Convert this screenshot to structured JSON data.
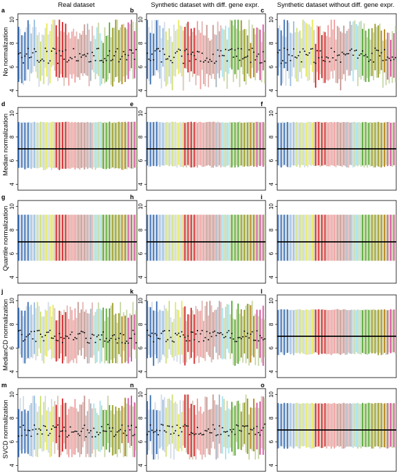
{
  "column_titles": [
    "Real dataset",
    "Synthetic dataset with diff. gene expr.",
    "Synthetic dataset without diff. gene expr."
  ],
  "row_labels": [
    "No normalization",
    "Median normalization",
    "Quantile normalization",
    "MedianCD normalization",
    "SVCD normalization"
  ],
  "palette": [
    "#3a6fb5",
    "#9bbfe0",
    "#cfe07a",
    "#e8ea5a",
    "#d7262a",
    "#f2a0a0",
    "#c49a94",
    "#a9b4c0",
    "#a9e4ee",
    "#5aaa3a",
    "#9a9a25",
    "#b5861f",
    "#d4569f"
  ],
  "chart_data": [
    {
      "panel": "a",
      "type": "box",
      "column": "Real dataset",
      "row": "No normalization",
      "ytick_labels": [
        "4",
        "6",
        "8",
        "10"
      ],
      "ylim": [
        3.5,
        10.5
      ],
      "median_range": [
        6.3,
        7.6
      ],
      "whisker_range": [
        4.0,
        10.0
      ],
      "pattern": "varied"
    },
    {
      "panel": "b",
      "type": "box",
      "column": "Synthetic dataset with diff. gene expr.",
      "row": "No normalization",
      "ytick_labels": [
        "4",
        "6",
        "8",
        "10"
      ],
      "ylim": [
        3.5,
        10.5
      ],
      "median_range": [
        6.3,
        7.6
      ],
      "whisker_range": [
        4.0,
        10.0
      ],
      "pattern": "varied"
    },
    {
      "panel": "c",
      "type": "box",
      "column": "Synthetic dataset without diff. gene expr.",
      "row": "No normalization",
      "ytick_labels": [
        "4",
        "6",
        "8",
        "10"
      ],
      "ylim": [
        3.5,
        10.5
      ],
      "median_range": [
        6.3,
        7.6
      ],
      "whisker_range": [
        4.0,
        10.0
      ],
      "pattern": "varied"
    },
    {
      "panel": "d",
      "type": "box",
      "column": "Real dataset",
      "row": "Median normalization",
      "ytick_labels": [
        "4",
        "6",
        "8",
        "10"
      ],
      "ylim": [
        3.5,
        10.5
      ],
      "median": 7.0,
      "whisker_range": [
        5.2,
        9.3
      ],
      "pattern": "aligned"
    },
    {
      "panel": "e",
      "type": "box",
      "column": "Synthetic dataset with diff. gene expr.",
      "row": "Median normalization",
      "ytick_labels": [
        "4",
        "6",
        "8",
        "10"
      ],
      "ylim": [
        3.5,
        10.5
      ],
      "median": 7.0,
      "whisker_range": [
        5.4,
        9.3
      ],
      "pattern": "aligned"
    },
    {
      "panel": "f",
      "type": "box",
      "column": "Synthetic dataset without diff. gene expr.",
      "row": "Median normalization",
      "ytick_labels": [
        "4",
        "6",
        "8",
        "10"
      ],
      "ylim": [
        3.5,
        10.5
      ],
      "median": 7.0,
      "whisker_range": [
        5.4,
        9.3
      ],
      "pattern": "aligned"
    },
    {
      "panel": "g",
      "type": "box",
      "column": "Real dataset",
      "row": "Quantile normalization",
      "ytick_labels": [
        "4",
        "6",
        "8",
        "10"
      ],
      "ylim": [
        3.5,
        10.5
      ],
      "median": 7.0,
      "whisker_range": [
        5.4,
        9.3
      ],
      "pattern": "identical"
    },
    {
      "panel": "h",
      "type": "box",
      "column": "Synthetic dataset with diff. gene expr.",
      "row": "Quantile normalization",
      "ytick_labels": [
        "4",
        "6",
        "8",
        "10"
      ],
      "ylim": [
        3.5,
        10.5
      ],
      "median": 7.0,
      "whisker_range": [
        5.4,
        9.3
      ],
      "pattern": "identical"
    },
    {
      "panel": "i",
      "type": "box",
      "column": "Synthetic dataset without diff. gene expr.",
      "row": "Quantile normalization",
      "ytick_labels": [
        "4",
        "6",
        "8",
        "10"
      ],
      "ylim": [
        3.5,
        10.5
      ],
      "median": 7.0,
      "whisker_range": [
        5.4,
        9.3
      ],
      "pattern": "identical"
    },
    {
      "panel": "j",
      "type": "box",
      "column": "Real dataset",
      "row": "MedianCD normalization",
      "ytick_labels": [
        "4",
        "6",
        "8",
        "10"
      ],
      "ylim": [
        3.5,
        10.5
      ],
      "median_range": [
        6.4,
        7.5
      ],
      "whisker_range": [
        4.7,
        9.9
      ],
      "pattern": "varied"
    },
    {
      "panel": "k",
      "type": "box",
      "column": "Synthetic dataset with diff. gene expr.",
      "row": "MedianCD normalization",
      "ytick_labels": [
        "4",
        "6",
        "8",
        "10"
      ],
      "ylim": [
        3.5,
        10.5
      ],
      "median_range": [
        6.5,
        7.5
      ],
      "whisker_range": [
        4.5,
        10.0
      ],
      "pattern": "varied"
    },
    {
      "panel": "l",
      "type": "box",
      "column": "Synthetic dataset without diff. gene expr.",
      "row": "MedianCD normalization",
      "ytick_labels": [
        "4",
        "6",
        "8",
        "10"
      ],
      "ylim": [
        3.5,
        10.5
      ],
      "median": 7.0,
      "whisker_range": [
        5.4,
        9.3
      ],
      "pattern": "aligned"
    },
    {
      "panel": "m",
      "type": "box",
      "column": "Real dataset",
      "row": "SVCD normalization",
      "ytick_labels": [
        "4",
        "6",
        "8",
        "10"
      ],
      "ylim": [
        3.5,
        10.5
      ],
      "median_range": [
        6.4,
        7.5
      ],
      "whisker_range": [
        4.7,
        9.9
      ],
      "pattern": "varied"
    },
    {
      "panel": "n",
      "type": "box",
      "column": "Synthetic dataset with diff. gene expr.",
      "row": "SVCD normalization",
      "ytick_labels": [
        "4",
        "6",
        "8",
        "10"
      ],
      "ylim": [
        3.5,
        10.5
      ],
      "median_range": [
        6.5,
        7.5
      ],
      "whisker_range": [
        4.5,
        10.0
      ],
      "pattern": "varied"
    },
    {
      "panel": "o",
      "type": "box",
      "column": "Synthetic dataset without diff. gene expr.",
      "row": "SVCD normalization",
      "ytick_labels": [
        "4",
        "6",
        "8",
        "10"
      ],
      "ylim": [
        3.5,
        10.5
      ],
      "median": 7.0,
      "whisker_range": [
        5.4,
        9.3
      ],
      "pattern": "aligned"
    }
  ]
}
